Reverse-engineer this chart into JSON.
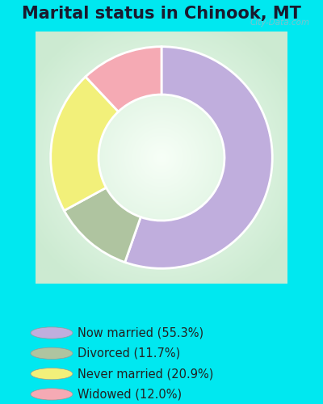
{
  "title": "Marital status in Chinook, MT",
  "slices": [
    55.3,
    11.7,
    20.9,
    12.0
  ],
  "labels": [
    "Now married (55.3%)",
    "Divorced (11.7%)",
    "Never married (20.9%)",
    "Widowed (12.0%)"
  ],
  "colors": [
    "#c0aedd",
    "#afc4a0",
    "#f2f07a",
    "#f5aab4"
  ],
  "legend_colors": [
    "#c0aedd",
    "#afc4a0",
    "#f2f07a",
    "#f5aab4"
  ],
  "bg_color_outer": "#00e8f0",
  "title_fontsize": 15,
  "watermark": "City-Data.com",
  "donut_width": 0.38,
  "start_angle": 90
}
